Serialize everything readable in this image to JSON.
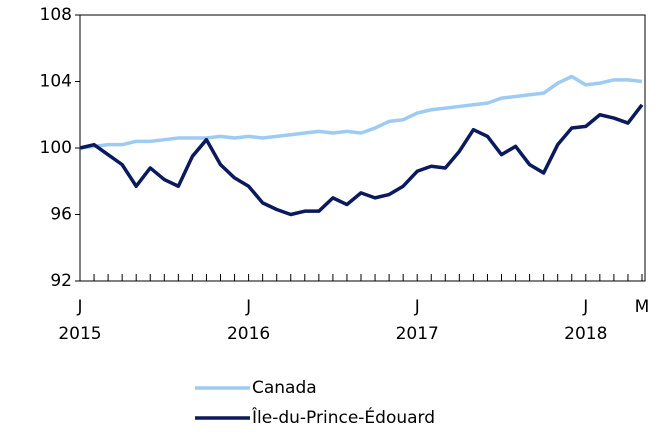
{
  "chart_data": {
    "type": "line",
    "categories": [
      "J",
      null,
      null,
      null,
      null,
      null,
      null,
      null,
      null,
      null,
      null,
      null,
      "J",
      null,
      null,
      null,
      null,
      null,
      null,
      null,
      null,
      null,
      null,
      null,
      "J",
      null,
      null,
      null,
      null,
      null,
      null,
      null,
      null,
      null,
      null,
      null,
      "J",
      null,
      null,
      null,
      "M"
    ],
    "year_labels": [
      "2015",
      "2016",
      "2017",
      "2018"
    ],
    "series": [
      {
        "name": "Canada",
        "color": "#9ecbf2",
        "values": [
          100.0,
          100.1,
          100.2,
          100.2,
          100.4,
          100.4,
          100.5,
          100.6,
          100.6,
          100.6,
          100.7,
          100.6,
          100.7,
          100.6,
          100.7,
          100.8,
          100.9,
          101.0,
          100.9,
          101.0,
          100.9,
          101.2,
          101.6,
          101.7,
          102.1,
          102.3,
          102.4,
          102.5,
          102.6,
          102.7,
          103.0,
          103.1,
          103.2,
          103.3,
          103.9,
          104.3,
          103.8,
          103.9,
          104.1,
          104.1,
          104.0
        ]
      },
      {
        "name": "Île-du-Prince-Édouard",
        "color": "#0a1a5c",
        "values": [
          100.0,
          100.2,
          99.6,
          99.0,
          97.7,
          98.8,
          98.1,
          97.7,
          99.5,
          100.5,
          99.0,
          98.2,
          97.7,
          96.7,
          96.3,
          96.0,
          96.2,
          96.2,
          97.0,
          96.6,
          97.3,
          97.0,
          97.2,
          97.7,
          98.6,
          98.9,
          98.8,
          99.8,
          101.1,
          100.7,
          99.6,
          100.1,
          99.0,
          98.5,
          100.2,
          101.2,
          101.3,
          102.0,
          101.8,
          101.5,
          102.6
        ]
      }
    ],
    "ylim": [
      92,
      108
    ],
    "yticks": [
      92,
      96,
      100,
      104,
      108
    ],
    "grid": false
  }
}
